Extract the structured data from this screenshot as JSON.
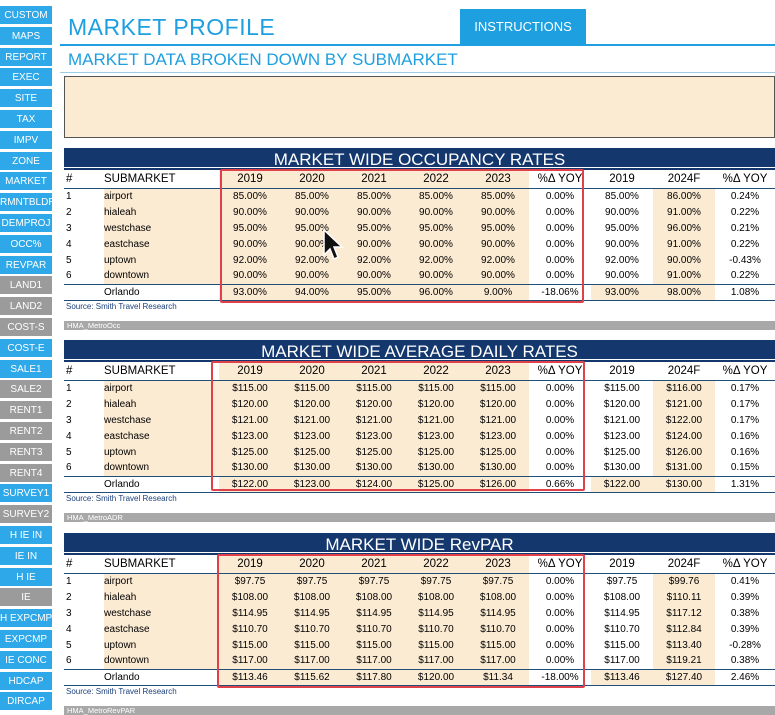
{
  "sidebar": {
    "items": [
      {
        "label": "CUSTOM",
        "color": "blue"
      },
      {
        "label": "MAPS",
        "color": "blue"
      },
      {
        "label": "REPORT",
        "color": "blue"
      },
      {
        "label": "EXEC",
        "color": "blue"
      },
      {
        "label": "SITE",
        "color": "blue"
      },
      {
        "label": "TAX",
        "color": "blue"
      },
      {
        "label": "IMPV",
        "color": "blue"
      },
      {
        "label": "ZONE",
        "color": "blue"
      },
      {
        "label": "MARKET",
        "color": "blue"
      },
      {
        "label": "RMNTBLDR",
        "color": "blue"
      },
      {
        "label": "DEMPROJ",
        "color": "blue"
      },
      {
        "label": "OCC%",
        "color": "blue"
      },
      {
        "label": "REVPAR",
        "color": "blue"
      },
      {
        "label": "LAND1",
        "color": "gray"
      },
      {
        "label": "LAND2",
        "color": "gray"
      },
      {
        "label": "COST-S",
        "color": "gray"
      },
      {
        "label": "COST-E",
        "color": "blue"
      },
      {
        "label": "SALE1",
        "color": "blue"
      },
      {
        "label": "SALE2",
        "color": "gray"
      },
      {
        "label": "RENT1",
        "color": "gray"
      },
      {
        "label": "RENT2",
        "color": "gray"
      },
      {
        "label": "RENT3",
        "color": "gray"
      },
      {
        "label": "RENT4",
        "color": "gray"
      },
      {
        "label": "SURVEY1",
        "color": "blue"
      },
      {
        "label": "SURVEY2",
        "color": "gray"
      },
      {
        "label": "H IE IN",
        "color": "blue"
      },
      {
        "label": "IE IN",
        "color": "blue"
      },
      {
        "label": "H IE",
        "color": "blue"
      },
      {
        "label": "IE",
        "color": "gray"
      },
      {
        "label": "H EXPCMP",
        "color": "blue"
      },
      {
        "label": "EXPCMP",
        "color": "blue"
      },
      {
        "label": "IE CONC",
        "color": "blue"
      },
      {
        "label": "HDCAP",
        "color": "blue"
      },
      {
        "label": "DIRCAP",
        "color": "blue"
      }
    ]
  },
  "header": {
    "title": "MARKET PROFILE",
    "instructions_label": "INSTRUCTIONS",
    "subtitle": "MARKET DATA BROKEN DOWN BY SUBMARKET"
  },
  "colors": {
    "accent": "#1d9fe0",
    "banner": "#14376d",
    "shade": "#fcebd3",
    "highlight_box": "#e0404a"
  },
  "columns": [
    "#",
    "SUBMARKET",
    "2019",
    "2020",
    "2021",
    "2022",
    "2023",
    "%Δ YOY",
    "2019",
    "2024F",
    "%Δ YOY"
  ],
  "tables": [
    {
      "title": "MARKET WIDE OCCUPANCY RATES",
      "source": "Source: Smith Travel Research",
      "sheet": "HMA_MetroOcc",
      "rows": [
        [
          "1",
          "airport",
          "85.00%",
          "85.00%",
          "85.00%",
          "85.00%",
          "85.00%",
          "0.00%",
          "85.00%",
          "86.00%",
          "0.24%"
        ],
        [
          "2",
          "hialeah",
          "90.00%",
          "90.00%",
          "90.00%",
          "90.00%",
          "90.00%",
          "0.00%",
          "90.00%",
          "91.00%",
          "0.22%"
        ],
        [
          "3",
          "westchase",
          "95.00%",
          "95.00%",
          "95.00%",
          "95.00%",
          "95.00%",
          "0.00%",
          "95.00%",
          "96.00%",
          "0.21%"
        ],
        [
          "4",
          "eastchase",
          "90.00%",
          "90.00%",
          "90.00%",
          "90.00%",
          "90.00%",
          "0.00%",
          "90.00%",
          "91.00%",
          "0.22%"
        ],
        [
          "5",
          "uptown",
          "92.00%",
          "92.00%",
          "92.00%",
          "92.00%",
          "92.00%",
          "0.00%",
          "92.00%",
          "90.00%",
          "-0.43%"
        ],
        [
          "6",
          "downtown",
          "90.00%",
          "90.00%",
          "90.00%",
          "90.00%",
          "90.00%",
          "0.00%",
          "90.00%",
          "91.00%",
          "0.22%"
        ]
      ],
      "total": [
        "",
        "Orlando",
        "93.00%",
        "94.00%",
        "95.00%",
        "96.00%",
        "9.00%",
        "-18.06%",
        "93.00%",
        "98.00%",
        "1.08%"
      ]
    },
    {
      "title": "MARKET WIDE AVERAGE DAILY RATES",
      "source": "Source: Smith Travel Research",
      "sheet": "HMA_MetroADR",
      "rows": [
        [
          "1",
          "airport",
          "$115.00",
          "$115.00",
          "$115.00",
          "$115.00",
          "$115.00",
          "0.00%",
          "$115.00",
          "$116.00",
          "0.17%"
        ],
        [
          "2",
          "hialeah",
          "$120.00",
          "$120.00",
          "$120.00",
          "$120.00",
          "$120.00",
          "0.00%",
          "$120.00",
          "$121.00",
          "0.17%"
        ],
        [
          "3",
          "westchase",
          "$121.00",
          "$121.00",
          "$121.00",
          "$121.00",
          "$121.00",
          "0.00%",
          "$121.00",
          "$122.00",
          "0.17%"
        ],
        [
          "4",
          "eastchase",
          "$123.00",
          "$123.00",
          "$123.00",
          "$123.00",
          "$123.00",
          "0.00%",
          "$123.00",
          "$124.00",
          "0.16%"
        ],
        [
          "5",
          "uptown",
          "$125.00",
          "$125.00",
          "$125.00",
          "$125.00",
          "$125.00",
          "0.00%",
          "$125.00",
          "$126.00",
          "0.16%"
        ],
        [
          "6",
          "downtown",
          "$130.00",
          "$130.00",
          "$130.00",
          "$130.00",
          "$130.00",
          "0.00%",
          "$130.00",
          "$131.00",
          "0.15%"
        ]
      ],
      "total": [
        "",
        "Orlando",
        "$122.00",
        "$123.00",
        "$124.00",
        "$125.00",
        "$126.00",
        "0.66%",
        "$122.00",
        "$130.00",
        "1.31%"
      ]
    },
    {
      "title": "MARKET WIDE RevPAR",
      "source": "Source: Smith Travel Research",
      "sheet": "HMA_MetroRevPAR",
      "rows": [
        [
          "1",
          "airport",
          "$97.75",
          "$97.75",
          "$97.75",
          "$97.75",
          "$97.75",
          "0.00%",
          "$97.75",
          "$99.76",
          "0.41%"
        ],
        [
          "2",
          "hialeah",
          "$108.00",
          "$108.00",
          "$108.00",
          "$108.00",
          "$108.00",
          "0.00%",
          "$108.00",
          "$110.11",
          "0.39%"
        ],
        [
          "3",
          "westchase",
          "$114.95",
          "$114.95",
          "$114.95",
          "$114.95",
          "$114.95",
          "0.00%",
          "$114.95",
          "$117.12",
          "0.38%"
        ],
        [
          "4",
          "eastchase",
          "$110.70",
          "$110.70",
          "$110.70",
          "$110.70",
          "$110.70",
          "0.00%",
          "$110.70",
          "$112.84",
          "0.39%"
        ],
        [
          "5",
          "uptown",
          "$115.00",
          "$115.00",
          "$115.00",
          "$115.00",
          "$115.00",
          "0.00%",
          "$115.00",
          "$113.40",
          "-0.28%"
        ],
        [
          "6",
          "downtown",
          "$117.00",
          "$117.00",
          "$117.00",
          "$117.00",
          "$117.00",
          "0.00%",
          "$117.00",
          "$119.21",
          "0.38%"
        ]
      ],
      "total": [
        "",
        "Orlando",
        "$113.46",
        "$115.62",
        "$117.80",
        "$120.00",
        "$11.34",
        "-18.00%",
        "$113.46",
        "$127.40",
        "2.46%"
      ]
    }
  ]
}
